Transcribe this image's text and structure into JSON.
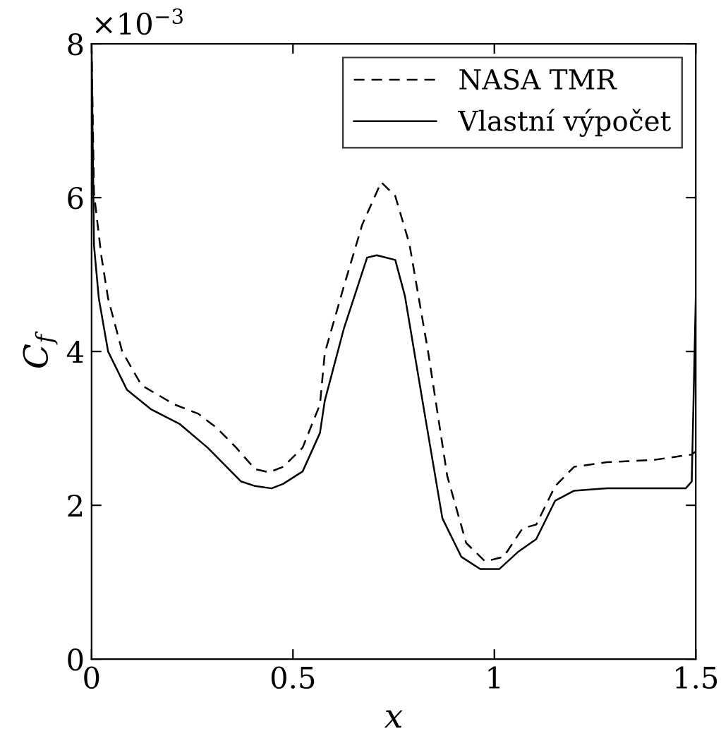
{
  "chart_data": {
    "type": "line",
    "xlabel": "x",
    "ylabel": "C$_{f}$",
    "annotations": [
      "×10$^{−3}$"
    ],
    "xlim": [
      0,
      1.5
    ],
    "ylim": [
      0,
      8
    ],
    "xticks": [
      0,
      {
        "value": 0.5,
        "label": "0.5"
      },
      1,
      {
        "value": 1.5,
        "label": "1.5"
      }
    ],
    "yticks": [
      0,
      2,
      4,
      6,
      8
    ],
    "grid": false,
    "legend": "top right",
    "series": [
      {
        "name": "NASA TMR",
        "color": "#000000",
        "line_style": "dashed",
        "x": [
          0,
          0.006,
          0.024,
          0.041,
          0.076,
          0.124,
          0.206,
          0.265,
          0.312,
          0.359,
          0.406,
          0.441,
          0.476,
          0.524,
          0.567,
          0.579,
          0.626,
          0.672,
          0.719,
          0.754,
          0.789,
          0.836,
          0.883,
          0.93,
          0.977,
          1.023,
          1.07,
          1.104,
          1.151,
          1.198,
          1.279,
          1.396,
          1.49,
          1.5
        ],
        "values": [
          8,
          6.06,
          5.25,
          4.69,
          4.0,
          3.56,
          3.31,
          3.19,
          3.0,
          2.75,
          2.47,
          2.43,
          2.5,
          2.75,
          3.31,
          3.98,
          4.84,
          5.65,
          6.2,
          6.02,
          5.4,
          3.98,
          2.38,
          1.51,
          1.27,
          1.33,
          1.7,
          1.75,
          2.25,
          2.5,
          2.56,
          2.59,
          2.66,
          2.7
        ]
      },
      {
        "name": "Vlastní výpočet",
        "color": "#000000",
        "line_style": "solid",
        "x": [
          0,
          0.006,
          0.018,
          0.041,
          0.088,
          0.147,
          0.218,
          0.288,
          0.324,
          0.371,
          0.406,
          0.447,
          0.476,
          0.524,
          0.567,
          0.579,
          0.626,
          0.684,
          0.708,
          0.754,
          0.778,
          0.825,
          0.871,
          0.918,
          0.965,
          1.012,
          1.058,
          1.104,
          1.151,
          1.198,
          1.279,
          1.475,
          1.49,
          1.5,
          1.5
        ],
        "values": [
          8,
          5.38,
          4.69,
          4.0,
          3.5,
          3.25,
          3.06,
          2.75,
          2.56,
          2.31,
          2.25,
          2.22,
          2.28,
          2.44,
          2.94,
          3.36,
          4.29,
          5.22,
          5.25,
          5.19,
          4.72,
          3.25,
          1.83,
          1.33,
          1.17,
          1.17,
          1.39,
          1.56,
          2.06,
          2.19,
          2.22,
          2.22,
          2.31,
          4.7,
          2.44
        ]
      }
    ]
  }
}
